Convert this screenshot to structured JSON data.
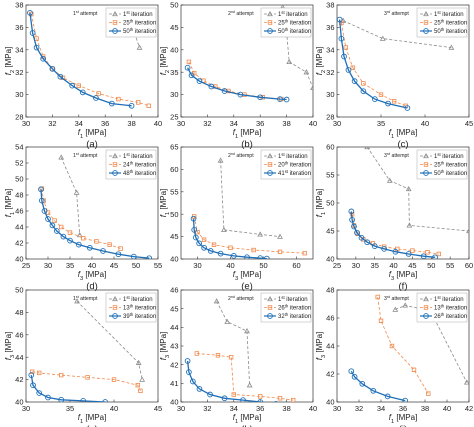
{
  "chart_data": [
    {
      "id": "a",
      "caption": "(a)",
      "type": "line",
      "attempt": {
        "ord": "1",
        "sup": "st",
        "rest": " attempt"
      },
      "xlabel": "f1 [MPa]",
      "ylabel": "f2 [MPa]",
      "xlim": [
        30,
        40
      ],
      "ylim": [
        28,
        38
      ],
      "xticks": [
        30,
        32,
        34,
        36,
        38,
        40
      ],
      "yticks": [
        28,
        30,
        32,
        34,
        36,
        38
      ],
      "series": [
        {
          "ord": "1",
          "sup": "st",
          "rest": " iteration",
          "style": "gray-tri",
          "x": [
            37.4,
            38.2,
            38.6
          ],
          "y": [
            36.4,
            35.6,
            34.2
          ]
        },
        {
          "ord": "25",
          "sup": "th",
          "rest": " iteration",
          "style": "orange-sq",
          "x": [
            30.4,
            30.8,
            31.3,
            32.0,
            32.8,
            34.0,
            35.5,
            37.0,
            38.5,
            39.3
          ],
          "y": [
            37.2,
            35.0,
            33.4,
            32.3,
            31.5,
            30.8,
            30.1,
            29.6,
            29.3,
            29.0
          ]
        },
        {
          "ord": "50",
          "sup": "th",
          "rest": " iteration",
          "style": "blue-circ",
          "x": [
            30.3,
            30.5,
            30.8,
            31.3,
            32.0,
            32.6,
            33.5,
            34.3,
            35.3,
            36.5,
            38.0
          ],
          "y": [
            37.3,
            35.5,
            34.2,
            33.2,
            32.3,
            31.6,
            30.8,
            30.2,
            29.7,
            29.2,
            29.0
          ]
        }
      ]
    },
    {
      "id": "b",
      "caption": "(b)",
      "type": "line",
      "attempt": {
        "ord": "2",
        "sup": "nd",
        "rest": " attempt"
      },
      "xlabel": "f1 [MPa]",
      "ylabel": "f2 [MPa]",
      "xlim": [
        30,
        40
      ],
      "ylim": [
        25,
        50
      ],
      "xticks": [
        30,
        32,
        34,
        36,
        38,
        40
      ],
      "yticks": [
        25,
        30,
        35,
        40,
        45,
        50
      ],
      "series": [
        {
          "ord": "1",
          "sup": "st",
          "rest": " iteration",
          "style": "gray-tri",
          "x": [
            37.7,
            38.0,
            38.2,
            39.5,
            40.0
          ],
          "y": [
            49.5,
            44.0,
            37.3,
            35.0,
            31.5
          ]
        },
        {
          "ord": "25",
          "sup": "th",
          "rest": " iteration",
          "style": "orange-sq",
          "x": [
            30.6,
            31.0,
            31.7,
            32.6,
            33.6,
            34.8,
            36.2,
            37.6
          ],
          "y": [
            37.3,
            34.8,
            33.1,
            31.8,
            30.8,
            30.0,
            29.4,
            29.0
          ]
        },
        {
          "ord": "50",
          "sup": "th",
          "rest": " iteration",
          "style": "blue-circ",
          "x": [
            30.5,
            30.8,
            31.4,
            32.3,
            33.3,
            34.5,
            36.0,
            37.5,
            38.0
          ],
          "y": [
            36.0,
            34.3,
            33.0,
            31.8,
            30.8,
            30.0,
            29.4,
            29.0,
            28.9
          ]
        }
      ]
    },
    {
      "id": "c",
      "caption": "(c)",
      "type": "line",
      "attempt": {
        "ord": "3",
        "sup": "rd",
        "rest": " attempt"
      },
      "xlabel": "f1 [MPa]",
      "ylabel": "f2 [MPa]",
      "xlim": [
        30,
        45
      ],
      "ylim": [
        28,
        38
      ],
      "xticks": [
        30,
        35,
        40,
        45
      ],
      "yticks": [
        28,
        30,
        32,
        34,
        36,
        38
      ],
      "series": [
        {
          "ord": "1",
          "sup": "st",
          "rest": " iteration",
          "style": "gray-tri",
          "x": [
            30.7,
            35.2,
            43.0
          ],
          "y": [
            36.6,
            35.0,
            34.2
          ]
        },
        {
          "ord": "25",
          "sup": "th",
          "rest": " iteration",
          "style": "orange-sq",
          "x": [
            30.5,
            31.0,
            31.8,
            33.0,
            35.0,
            36.5,
            37.8
          ],
          "y": [
            36.4,
            34.2,
            32.4,
            31.0,
            30.0,
            29.4,
            29.0
          ]
        },
        {
          "ord": "50",
          "sup": "th",
          "rest": " iteration",
          "style": "blue-circ",
          "x": [
            30.3,
            30.5,
            30.8,
            31.3,
            32.0,
            33.0,
            34.3,
            35.8,
            38.0
          ],
          "y": [
            36.7,
            35.0,
            33.4,
            32.2,
            31.2,
            30.3,
            29.6,
            29.2,
            28.8
          ]
        }
      ]
    },
    {
      "id": "d",
      "caption": "(d)",
      "type": "line",
      "attempt": {
        "ord": "1",
        "sup": "st",
        "rest": " attempt"
      },
      "xlabel": "f3 [MPa]",
      "ylabel": "f1 [MPa]",
      "xlim": [
        25,
        55
      ],
      "ylim": [
        40,
        54
      ],
      "xticks": [
        25,
        30,
        35,
        40,
        45,
        50,
        55
      ],
      "yticks": [
        40,
        42,
        44,
        46,
        48,
        50,
        52,
        54
      ],
      "series": [
        {
          "ord": "1",
          "sup": "st",
          "rest": " iteration",
          "style": "gray-tri",
          "x": [
            33.0,
            36.5,
            37.2
          ],
          "y": [
            52.7,
            48.3,
            43.0
          ]
        },
        {
          "ord": "24",
          "sup": "th",
          "rest": " iteration",
          "style": "orange-sq",
          "x": [
            28.6,
            29.0,
            30.0,
            31.5,
            33.0,
            35.0,
            38.0,
            41.0,
            44.0,
            46.5
          ],
          "y": [
            48.8,
            47.3,
            45.8,
            44.8,
            44.0,
            43.3,
            42.6,
            42.2,
            41.8,
            41.3
          ]
        },
        {
          "ord": "48",
          "sup": "th",
          "rest": " iteration",
          "style": "blue-circ",
          "x": [
            28.4,
            28.6,
            29.2,
            30.0,
            31.0,
            32.0,
            33.5,
            35.0,
            37.0,
            39.5,
            42.5,
            46.0,
            49.5,
            53.0
          ],
          "y": [
            48.7,
            47.3,
            46.0,
            45.0,
            44.2,
            43.5,
            42.8,
            42.3,
            41.8,
            41.4,
            41.0,
            40.6,
            40.3,
            40.1
          ]
        }
      ]
    },
    {
      "id": "e",
      "caption": "(e)",
      "type": "line",
      "attempt": {
        "ord": "2",
        "sup": "nd",
        "rest": " attempt"
      },
      "xlabel": "f3 [MPa]",
      "ylabel": "f1 [MPa]",
      "xlim": [
        25,
        65
      ],
      "ylim": [
        40,
        65
      ],
      "xticks": [
        30,
        40,
        50,
        60
      ],
      "yticks": [
        40,
        45,
        50,
        55,
        60,
        65
      ],
      "series": [
        {
          "ord": "1",
          "sup": "st",
          "rest": " iteration",
          "style": "gray-tri",
          "x": [
            37.0,
            38.0,
            49.0,
            55.0
          ],
          "y": [
            62.0,
            46.5,
            45.5,
            45.0
          ]
        },
        {
          "ord": "20",
          "sup": "th",
          "rest": " iteration",
          "style": "orange-sq",
          "x": [
            29.0,
            30.0,
            32.0,
            35.0,
            40.0,
            47.0,
            55.0,
            62.5
          ],
          "y": [
            49.5,
            46.0,
            44.3,
            43.2,
            42.5,
            42.0,
            41.6,
            41.3
          ]
        },
        {
          "ord": "41",
          "sup": "st",
          "rest": " iteration",
          "style": "blue-circ",
          "x": [
            28.8,
            29.0,
            29.5,
            30.5,
            32.0,
            34.0,
            37.0,
            41.0,
            45.0,
            49.0,
            51.0
          ],
          "y": [
            49.0,
            46.5,
            44.8,
            43.5,
            42.5,
            41.8,
            41.2,
            40.7,
            40.4,
            40.2,
            40.1
          ]
        }
      ]
    },
    {
      "id": "f",
      "caption": "(f)",
      "type": "line",
      "attempt": {
        "ord": "3",
        "sup": "rd",
        "rest": " attempt"
      },
      "xlabel": "f3 [MPa]",
      "ylabel": "f1 [MPa]",
      "xlim": [
        25,
        60
      ],
      "ylim": [
        40,
        60
      ],
      "xticks": [
        25,
        30,
        35,
        40,
        45,
        50,
        55,
        60
      ],
      "yticks": [
        40,
        45,
        50,
        55,
        60
      ],
      "series": [
        {
          "ord": "1",
          "sup": "st",
          "rest": " iteration",
          "style": "gray-tri",
          "x": [
            33.0,
            39.0,
            44.0,
            44.2,
            60.0
          ],
          "y": [
            60.0,
            54.0,
            52.5,
            46.0,
            45.0
          ]
        },
        {
          "ord": "25",
          "sup": "th",
          "rest": " iteration",
          "style": "orange-sq",
          "x": [
            29.0,
            29.5,
            30.5,
            32.0,
            34.5,
            37.5,
            41.0,
            45.0,
            49.0,
            52.0
          ],
          "y": [
            48.0,
            46.0,
            44.5,
            43.5,
            42.8,
            42.2,
            41.8,
            41.5,
            41.2,
            40.9
          ]
        },
        {
          "ord": "50",
          "sup": "th",
          "rest": " iteration",
          "style": "blue-circ",
          "x": [
            28.8,
            29.0,
            29.5,
            30.3,
            31.5,
            33.0,
            35.0,
            37.5,
            40.5,
            44.0,
            48.0,
            51.0
          ],
          "y": [
            48.5,
            47.0,
            45.8,
            44.7,
            43.8,
            43.0,
            42.3,
            41.8,
            41.3,
            40.9,
            40.5,
            40.3
          ]
        }
      ]
    },
    {
      "id": "g",
      "caption": "(g)",
      "type": "line",
      "attempt": {
        "ord": "1",
        "sup": "st",
        "rest": " attempt"
      },
      "xlabel": "f1 [MPa]",
      "ylabel": "f3 [MPa]",
      "xlim": [
        30,
        45
      ],
      "ylim": [
        40,
        50
      ],
      "xticks": [
        30,
        35,
        40,
        45
      ],
      "yticks": [
        40,
        42,
        44,
        46,
        48,
        50
      ],
      "series": [
        {
          "ord": "1",
          "sup": "st",
          "rest": " iteration",
          "style": "gray-tri",
          "x": [
            35.8,
            42.8,
            43.2
          ],
          "y": [
            49.0,
            43.5,
            42.0
          ]
        },
        {
          "ord": "13",
          "sup": "th",
          "rest": " iteration",
          "style": "orange-sq",
          "x": [
            30.7,
            31.5,
            34.0,
            37.0,
            40.0,
            42.7,
            43.0
          ],
          "y": [
            42.7,
            42.6,
            42.4,
            42.2,
            42.0,
            41.5,
            41.0
          ]
        },
        {
          "ord": "39",
          "sup": "th",
          "rest": " iteration",
          "style": "blue-circ",
          "x": [
            30.6,
            30.8,
            31.5,
            32.5,
            34.0,
            36.5,
            39.0
          ],
          "y": [
            42.4,
            41.5,
            40.8,
            40.4,
            40.2,
            40.1,
            40.0
          ]
        }
      ]
    },
    {
      "id": "h",
      "caption": "(h)",
      "type": "line",
      "attempt": {
        "ord": "2",
        "sup": "nd",
        "rest": " attempt"
      },
      "xlabel": "f1 [MPa]",
      "ylabel": "f3 [MPa]",
      "xlim": [
        30,
        40
      ],
      "ylim": [
        40,
        46
      ],
      "xticks": [
        30,
        32,
        34,
        36,
        38,
        40
      ],
      "yticks": [
        40,
        41,
        42,
        43,
        44,
        45,
        46
      ],
      "series": [
        {
          "ord": "1",
          "sup": "st",
          "rest": " iteration",
          "style": "gray-tri",
          "x": [
            32.7,
            33.5,
            35.0,
            35.2
          ],
          "y": [
            45.4,
            44.3,
            43.8,
            40.9
          ]
        },
        {
          "ord": "26",
          "sup": "th",
          "rest": " iteration",
          "style": "orange-sq",
          "x": [
            31.2,
            32.8,
            33.8,
            34.0,
            36.0,
            37.5,
            38.5
          ],
          "y": [
            42.6,
            42.5,
            42.4,
            40.4,
            40.3,
            40.2,
            40.1
          ]
        },
        {
          "ord": "32",
          "sup": "th",
          "rest": " iteration",
          "style": "blue-circ",
          "x": [
            30.5,
            30.6,
            30.9,
            31.4,
            32.2,
            33.3,
            34.7,
            36.0,
            37.2
          ],
          "y": [
            42.2,
            41.6,
            41.1,
            40.7,
            40.4,
            40.2,
            40.1,
            40.0,
            39.9
          ]
        }
      ]
    },
    {
      "id": "i",
      "caption": "(i)",
      "type": "line",
      "attempt": {
        "ord": "3",
        "sup": "rd",
        "rest": " attempt"
      },
      "xlabel": "f1 [MPa]",
      "ylabel": "f3 [MPa]",
      "xlim": [
        30,
        42
      ],
      "ylim": [
        40,
        48
      ],
      "xticks": [
        30,
        32,
        34,
        36,
        38,
        40,
        42
      ],
      "yticks": [
        40,
        42,
        44,
        46,
        48
      ],
      "series": [
        {
          "ord": "1",
          "sup": "st",
          "rest": " iteration",
          "style": "gray-tri",
          "x": [
            35.3,
            36.2,
            38.5,
            41.8
          ],
          "y": [
            46.6,
            46.9,
            46.5,
            41.4
          ]
        },
        {
          "ord": "13",
          "sup": "th",
          "rest": " iteration",
          "style": "orange-sq",
          "x": [
            33.7,
            34.0,
            35.0,
            37.0,
            38.3
          ],
          "y": [
            47.5,
            45.8,
            44.0,
            42.3,
            40.6
          ]
        },
        {
          "ord": "26",
          "sup": "th",
          "rest": " iteration",
          "style": "blue-circ",
          "x": [
            31.3,
            31.6,
            32.3,
            33.3,
            34.6,
            36.2
          ],
          "y": [
            42.2,
            41.8,
            41.3,
            40.8,
            40.4,
            40.1
          ]
        }
      ]
    }
  ],
  "styles": {
    "gray-tri": {
      "color": "#8a8a8a",
      "marker": "triangle",
      "dash": "3,2"
    },
    "orange-sq": {
      "color": "#f0884a",
      "marker": "square",
      "dash": "3,2"
    },
    "blue-circ": {
      "color": "#1f6fb8",
      "marker": "circle",
      "dash": ""
    }
  },
  "layout_colors": {
    "axis": "#333333",
    "background": "#ffffff"
  }
}
